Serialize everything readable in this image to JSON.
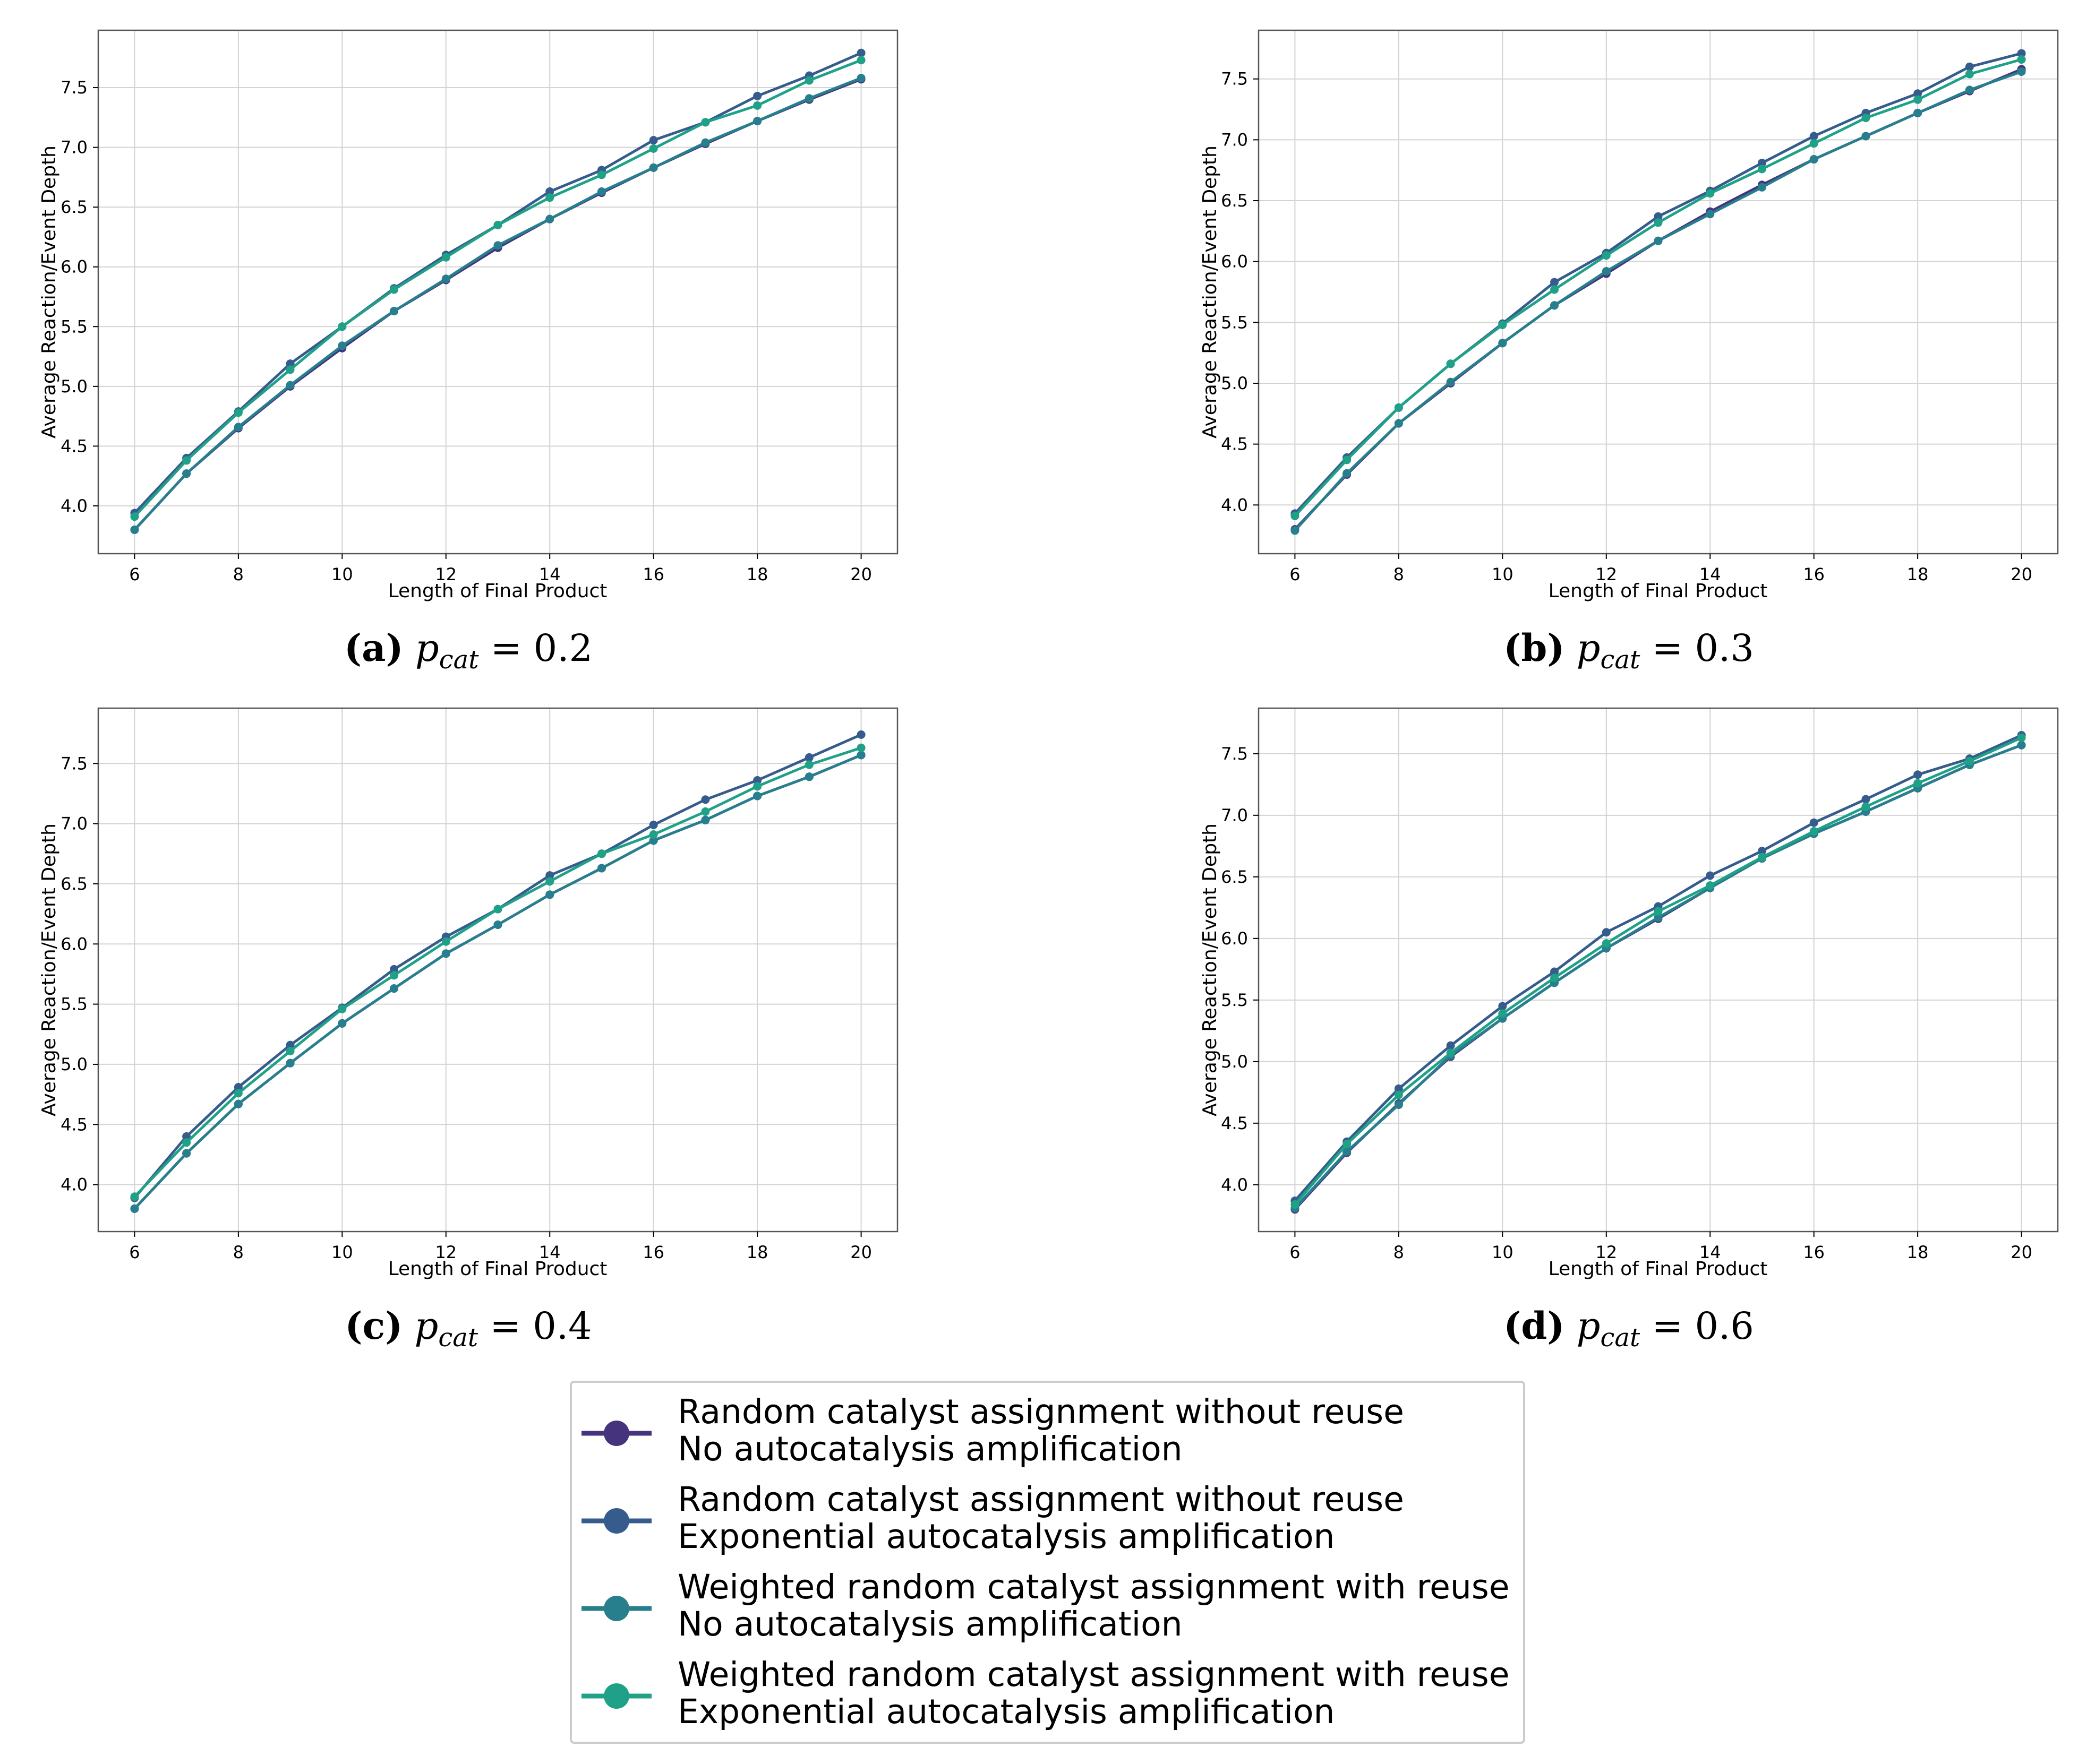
{
  "colors": {
    "series": [
      "#46337e",
      "#365c8d",
      "#277f8e",
      "#1fa187"
    ],
    "grid": "#d3d3d3",
    "frame": "#555555"
  },
  "legend": {
    "entries": [
      {
        "line1": "Random catalyst assignment without reuse",
        "line2": "No autocatalysis amplification"
      },
      {
        "line1": "Random catalyst assignment without reuse",
        "line2": "Exponential autocatalysis amplification"
      },
      {
        "line1": "Weighted random catalyst assignment with reuse",
        "line2": "No autocatalysis amplification"
      },
      {
        "line1": "Weighted random catalyst assignment with reuse",
        "line2": "Exponential autocatalysis amplification"
      }
    ]
  },
  "chart_data": [
    {
      "type": "line",
      "panel_letter": "(a)",
      "caption_var": "p",
      "caption_sub": "cat",
      "caption_value": "= 0.2",
      "xlabel": "Length of Final Product",
      "ylabel": "Average Reaction/Event Depth",
      "xlim": [
        5.3,
        20.7
      ],
      "ylim": [
        3.6,
        7.98
      ],
      "xticks": [
        6,
        8,
        10,
        12,
        14,
        16,
        18,
        20
      ],
      "yticks": [
        4.0,
        4.5,
        5.0,
        5.5,
        6.0,
        6.5,
        7.0,
        7.5
      ],
      "ytick_labels": [
        "4.0",
        "4.5",
        "5.0",
        "5.5",
        "6.0",
        "6.5",
        "7.0",
        "7.5"
      ],
      "x": [
        6,
        7,
        8,
        9,
        10,
        11,
        12,
        13,
        14,
        15,
        16,
        17,
        18,
        19,
        20
      ],
      "series": [
        {
          "name": "Random catalyst assignment without reuse / No autocatalysis amplification",
          "values": [
            3.8,
            4.27,
            4.65,
            5.0,
            5.32,
            5.63,
            5.89,
            6.16,
            6.4,
            6.62,
            6.83,
            7.03,
            7.22,
            7.4,
            7.57
          ]
        },
        {
          "name": "Random catalyst assignment without reuse / Exponential autocatalysis amplification",
          "values": [
            3.94,
            4.4,
            4.79,
            5.19,
            5.5,
            5.82,
            6.1,
            6.35,
            6.63,
            6.81,
            7.06,
            7.21,
            7.43,
            7.6,
            7.79
          ]
        },
        {
          "name": "Weighted random catalyst assignment with reuse / No autocatalysis amplification",
          "values": [
            3.8,
            4.27,
            4.66,
            5.01,
            5.34,
            5.63,
            5.9,
            6.18,
            6.4,
            6.63,
            6.83,
            7.04,
            7.22,
            7.41,
            7.58
          ]
        },
        {
          "name": "Weighted random catalyst assignment with reuse / Exponential autocatalysis amplification",
          "values": [
            3.91,
            4.38,
            4.78,
            5.14,
            5.5,
            5.81,
            6.08,
            6.35,
            6.58,
            6.77,
            6.99,
            7.21,
            7.35,
            7.56,
            7.73
          ]
        }
      ]
    },
    {
      "type": "line",
      "panel_letter": "(b)",
      "caption_var": "p",
      "caption_sub": "cat",
      "caption_value": "= 0.3",
      "xlabel": "Length of Final Product",
      "ylabel": "Average Reaction/Event Depth",
      "xlim": [
        5.3,
        20.7
      ],
      "ylim": [
        3.6,
        7.9
      ],
      "xticks": [
        6,
        8,
        10,
        12,
        14,
        16,
        18,
        20
      ],
      "yticks": [
        4.0,
        4.5,
        5.0,
        5.5,
        6.0,
        6.5,
        7.0,
        7.5
      ],
      "ytick_labels": [
        "4.0",
        "4.5",
        "5.0",
        "5.5",
        "6.0",
        "6.5",
        "7.0",
        "7.5"
      ],
      "x": [
        6,
        7,
        8,
        9,
        10,
        11,
        12,
        13,
        14,
        15,
        16,
        17,
        18,
        19,
        20
      ],
      "series": [
        {
          "name": "Random catalyst assignment without reuse / No autocatalysis amplification",
          "values": [
            3.8,
            4.25,
            4.67,
            5.0,
            5.33,
            5.64,
            5.9,
            6.17,
            6.41,
            6.63,
            6.84,
            7.03,
            7.22,
            7.4,
            7.58
          ]
        },
        {
          "name": "Random catalyst assignment without reuse / Exponential autocatalysis amplification",
          "values": [
            3.93,
            4.39,
            4.8,
            5.16,
            5.49,
            5.83,
            6.07,
            6.37,
            6.58,
            6.81,
            7.03,
            7.22,
            7.38,
            7.6,
            7.71
          ]
        },
        {
          "name": "Weighted random catalyst assignment with reuse / No autocatalysis amplification",
          "values": [
            3.79,
            4.26,
            4.67,
            5.01,
            5.33,
            5.64,
            5.92,
            6.17,
            6.39,
            6.61,
            6.84,
            7.03,
            7.22,
            7.41,
            7.56
          ]
        },
        {
          "name": "Weighted random catalyst assignment with reuse / Exponential autocatalysis amplification",
          "values": [
            3.91,
            4.37,
            4.8,
            5.16,
            5.48,
            5.77,
            6.05,
            6.32,
            6.56,
            6.76,
            6.97,
            7.18,
            7.33,
            7.54,
            7.66
          ]
        }
      ]
    },
    {
      "type": "line",
      "panel_letter": "(c)",
      "caption_var": "p",
      "caption_sub": "cat",
      "caption_value": "= 0.4",
      "xlabel": "Length of Final Product",
      "ylabel": "Average Reaction/Event Depth",
      "xlim": [
        5.3,
        20.7
      ],
      "ylim": [
        3.61,
        7.96
      ],
      "xticks": [
        6,
        8,
        10,
        12,
        14,
        16,
        18,
        20
      ],
      "yticks": [
        4.0,
        4.5,
        5.0,
        5.5,
        6.0,
        6.5,
        7.0,
        7.5
      ],
      "ytick_labels": [
        "4.0",
        "4.5",
        "5.0",
        "5.5",
        "6.0",
        "6.5",
        "7.0",
        "7.5"
      ],
      "x": [
        6,
        7,
        8,
        9,
        10,
        11,
        12,
        13,
        14,
        15,
        16,
        17,
        18,
        19,
        20
      ],
      "series": [
        {
          "name": "Random catalyst assignment without reuse / No autocatalysis amplification",
          "values": [
            3.8,
            4.26,
            4.67,
            5.01,
            5.34,
            5.63,
            5.92,
            6.16,
            6.41,
            6.63,
            6.86,
            7.03,
            7.23,
            7.39,
            7.57
          ]
        },
        {
          "name": "Random catalyst assignment without reuse / Exponential autocatalysis amplification",
          "values": [
            3.89,
            4.4,
            4.81,
            5.16,
            5.47,
            5.79,
            6.06,
            6.29,
            6.57,
            6.75,
            6.99,
            7.2,
            7.36,
            7.55,
            7.74
          ]
        },
        {
          "name": "Weighted random catalyst assignment with reuse / No autocatalysis amplification",
          "values": [
            3.8,
            4.26,
            4.67,
            5.01,
            5.34,
            5.63,
            5.92,
            6.16,
            6.41,
            6.63,
            6.86,
            7.03,
            7.23,
            7.39,
            7.57
          ]
        },
        {
          "name": "Weighted random catalyst assignment with reuse / Exponential autocatalysis amplification",
          "values": [
            3.9,
            4.35,
            4.76,
            5.11,
            5.46,
            5.74,
            6.02,
            6.29,
            6.52,
            6.75,
            6.91,
            7.1,
            7.31,
            7.49,
            7.63
          ]
        }
      ]
    },
    {
      "type": "line",
      "panel_letter": "(d)",
      "caption_var": "p",
      "caption_sub": "cat",
      "caption_value": "= 0.6",
      "xlabel": "Length of Final Product",
      "ylabel": "Average Reaction/Event Depth",
      "xlim": [
        5.3,
        20.7
      ],
      "ylim": [
        3.62,
        7.87
      ],
      "xticks": [
        6,
        8,
        10,
        12,
        14,
        16,
        18,
        20
      ],
      "yticks": [
        4.0,
        4.5,
        5.0,
        5.5,
        6.0,
        6.5,
        7.0,
        7.5
      ],
      "ytick_labels": [
        "4.0",
        "4.5",
        "5.0",
        "5.5",
        "6.0",
        "6.5",
        "7.0",
        "7.5"
      ],
      "x": [
        6,
        7,
        8,
        9,
        10,
        11,
        12,
        13,
        14,
        15,
        16,
        17,
        18,
        19,
        20
      ],
      "series": [
        {
          "name": "Random catalyst assignment without reuse / No autocatalysis amplification",
          "values": [
            3.8,
            4.26,
            4.66,
            5.04,
            5.35,
            5.64,
            5.92,
            6.16,
            6.41,
            6.65,
            6.85,
            7.03,
            7.22,
            7.41,
            7.57
          ]
        },
        {
          "name": "Random catalyst assignment without reuse / Exponential autocatalysis amplification",
          "values": [
            3.87,
            4.35,
            4.78,
            5.13,
            5.45,
            5.73,
            6.05,
            6.26,
            6.51,
            6.71,
            6.94,
            7.13,
            7.33,
            7.46,
            7.65
          ]
        },
        {
          "name": "Weighted random catalyst assignment with reuse / No autocatalysis amplification",
          "values": [
            3.81,
            4.27,
            4.65,
            5.05,
            5.35,
            5.64,
            5.92,
            6.17,
            6.41,
            6.65,
            6.85,
            7.03,
            7.22,
            7.41,
            7.57
          ]
        },
        {
          "name": "Weighted random catalyst assignment with reuse / Exponential autocatalysis amplification",
          "values": [
            3.84,
            4.33,
            4.73,
            5.07,
            5.39,
            5.68,
            5.96,
            6.22,
            6.43,
            6.66,
            6.87,
            7.07,
            7.26,
            7.44,
            7.63
          ]
        }
      ]
    }
  ]
}
